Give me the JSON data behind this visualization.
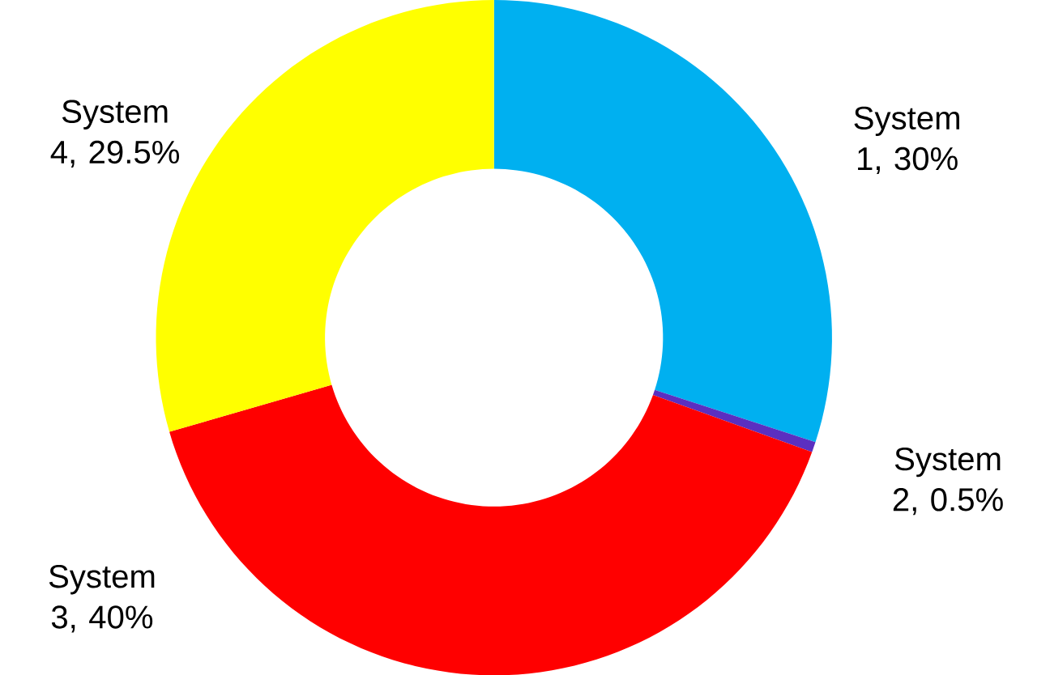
{
  "chart_data": {
    "type": "donut",
    "categories": [
      "System 1, 30%",
      "System 2, 0.5%",
      "System 3, 40%",
      "System 4, 29.5%"
    ],
    "values": [
      30,
      0.5,
      40,
      29.5
    ],
    "colors": [
      "#00b0f0",
      "#5b2fc0",
      "#ff0000",
      "#ffff00"
    ]
  }
}
